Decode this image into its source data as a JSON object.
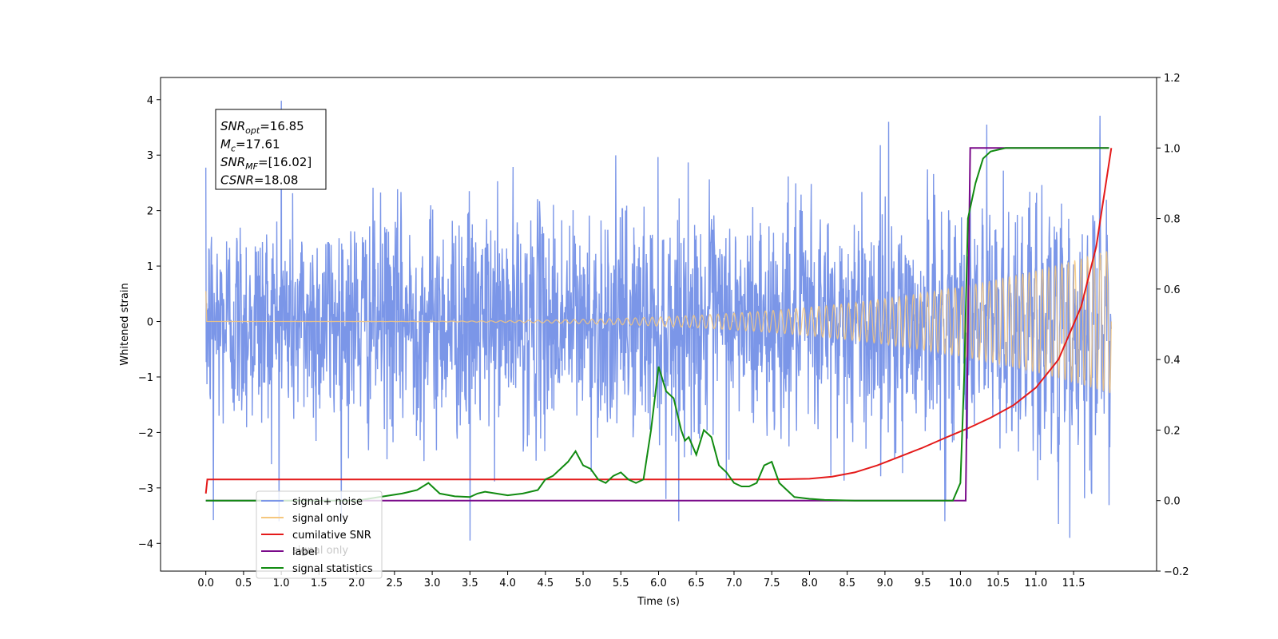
{
  "chart_data": {
    "type": "line",
    "xlabel": "Time (s)",
    "ylabel_left": "Whitened strain",
    "ylabel_right": "",
    "xlim": [
      -0.6,
      12.6
    ],
    "ylim_left": [
      -4.5,
      4.4
    ],
    "ylim_right": [
      -0.2,
      1.2
    ],
    "x_ticks": [
      "0.0",
      "0.5",
      "1.0",
      "1.5",
      "2.0",
      "2.5",
      "3.0",
      "3.5",
      "4.0",
      "4.5",
      "5.0",
      "5.5",
      "6.0",
      "6.5",
      "7.0",
      "7.5",
      "8.0",
      "8.5",
      "9.0",
      "9.5",
      "10.0",
      "10.5",
      "11.0",
      "11.5"
    ],
    "y_ticks_left": [
      "4",
      "3",
      "2",
      "1",
      "0",
      "−1",
      "−2",
      "−3",
      "−4"
    ],
    "y_ticks_right": [
      "1.2",
      "1.0",
      "0.8",
      "0.6",
      "0.4",
      "0.2",
      "0.0",
      "−0.2"
    ],
    "grid": false,
    "legend_placement": "lower-left",
    "annotation": {
      "lines": [
        {
          "main": "SNR",
          "sub": "opt",
          "rest": "=16.85"
        },
        {
          "main": "M",
          "sub": "c",
          "rest": "=17.61"
        },
        {
          "main": "SNR",
          "sub": "MF",
          "rest": "=[16.02]"
        },
        {
          "main": "CSNR",
          "sub": "",
          "rest": "=18.08"
        }
      ]
    },
    "series": [
      {
        "name": "signal+ noise",
        "color": "#7b96e8",
        "axis": "left",
        "description_stats": {
          "t_start": 0.0,
          "t_end": 12.0,
          "std": 1.0,
          "min": -3.95,
          "max": 3.98
        },
        "notable_peaks": [
          [
            0.1,
            -3.58
          ],
          [
            1.0,
            3.98
          ],
          [
            3.5,
            -3.95
          ],
          [
            6.1,
            -3.2
          ],
          [
            11.3,
            -3.65
          ],
          [
            11.45,
            -3.9
          ],
          [
            11.85,
            3.71
          ],
          [
            10.35,
            3.55
          ],
          [
            9.05,
            3.6
          ]
        ]
      },
      {
        "name": "signal only",
        "color": "#f5c77e",
        "axis": "left",
        "description_stats": {
          "t_start": 0.0,
          "t_end": 12.0,
          "envelope_end": 1.3,
          "chirp": true
        }
      },
      {
        "name": "cumilative SNR",
        "color": "#e41a1a",
        "axis": "right",
        "x": [
          0.0,
          0.02,
          1.0,
          2.0,
          3.0,
          4.0,
          5.0,
          6.0,
          7.0,
          7.5,
          8.0,
          8.3,
          8.6,
          8.9,
          9.2,
          9.5,
          9.8,
          10.1,
          10.4,
          10.7,
          11.0,
          11.3,
          11.6,
          11.8,
          12.0
        ],
        "y": [
          0.02,
          0.06,
          0.06,
          0.06,
          0.06,
          0.06,
          0.06,
          0.06,
          0.06,
          0.06,
          0.062,
          0.068,
          0.08,
          0.1,
          0.125,
          0.15,
          0.178,
          0.205,
          0.235,
          0.27,
          0.32,
          0.4,
          0.55,
          0.72,
          1.0
        ]
      },
      {
        "name": "label",
        "color": "#7a0a8a",
        "axis": "right",
        "x": [
          0.0,
          10.07,
          10.07,
          10.13,
          10.13,
          11.97
        ],
        "y": [
          0.0,
          0.0,
          0.0,
          1.0,
          1.0,
          1.0
        ]
      },
      {
        "name": "signal statistics",
        "color": "#118b11",
        "axis": "right",
        "x": [
          0.0,
          0.5,
          1.0,
          1.5,
          2.0,
          2.3,
          2.6,
          2.8,
          2.95,
          3.1,
          3.3,
          3.5,
          3.6,
          3.7,
          3.85,
          4.0,
          4.2,
          4.4,
          4.5,
          4.6,
          4.7,
          4.8,
          4.9,
          5.0,
          5.1,
          5.2,
          5.3,
          5.4,
          5.5,
          5.6,
          5.7,
          5.8,
          5.9,
          6.0,
          6.1,
          6.2,
          6.3,
          6.35,
          6.4,
          6.5,
          6.6,
          6.7,
          6.8,
          6.9,
          7.0,
          7.1,
          7.2,
          7.3,
          7.4,
          7.5,
          7.6,
          7.7,
          7.8,
          8.0,
          8.2,
          8.6,
          9.0,
          9.5,
          9.9,
          10.0,
          10.05,
          10.1,
          10.2,
          10.3,
          10.4,
          10.6,
          11.0,
          11.5,
          11.97
        ],
        "y": [
          0.0,
          0.0,
          0.0,
          0.0,
          0.0,
          0.01,
          0.02,
          0.03,
          0.05,
          0.02,
          0.012,
          0.01,
          0.02,
          0.025,
          0.02,
          0.015,
          0.02,
          0.03,
          0.06,
          0.07,
          0.09,
          0.11,
          0.14,
          0.1,
          0.09,
          0.06,
          0.05,
          0.07,
          0.08,
          0.06,
          0.05,
          0.06,
          0.2,
          0.38,
          0.31,
          0.29,
          0.2,
          0.17,
          0.18,
          0.13,
          0.2,
          0.18,
          0.1,
          0.08,
          0.05,
          0.04,
          0.04,
          0.05,
          0.1,
          0.11,
          0.05,
          0.03,
          0.01,
          0.005,
          0.002,
          0.0,
          0.0,
          0.0,
          0.0,
          0.05,
          0.35,
          0.8,
          0.9,
          0.97,
          0.99,
          1.0,
          1.0,
          1.0,
          1.0
        ]
      }
    ]
  },
  "legend": {
    "items": [
      {
        "label": "signal+ noise",
        "color": "#7b96e8"
      },
      {
        "label": "signal only",
        "color": "#f5c77e"
      },
      {
        "label": "cumilative SNR",
        "color": "#e41a1a"
      },
      {
        "label": "label",
        "color": "#7a0a8a"
      },
      {
        "label": "signal statistics",
        "color": "#118b11"
      }
    ],
    "ghost_text": "signal only"
  }
}
